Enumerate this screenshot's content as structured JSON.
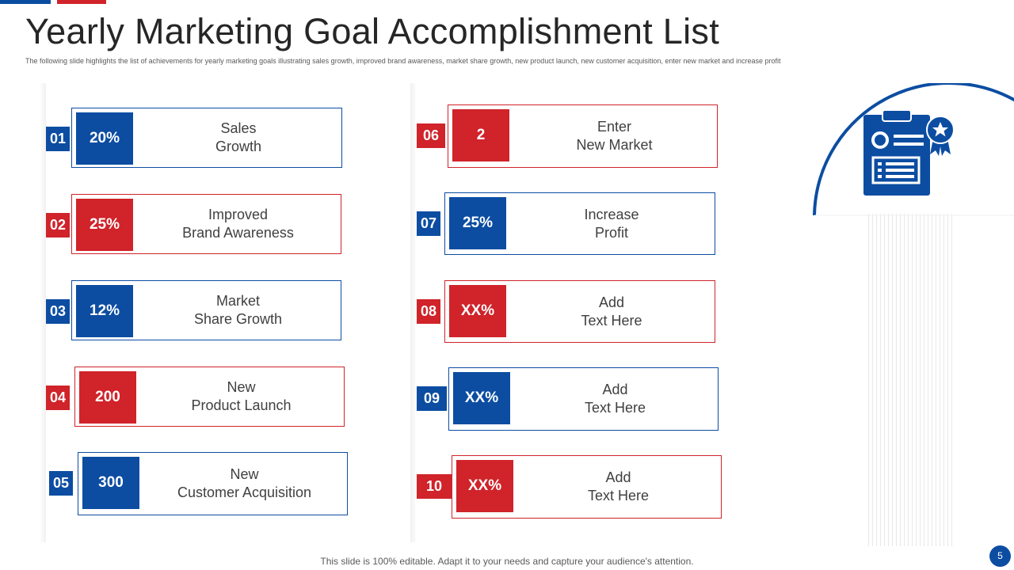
{
  "title": "Yearly Marketing Goal Accomplishment List",
  "subtitle": "The following slide highlights the list of achievements for yearly marketing goals illustrating sales growth, improved brand awareness, market share growth, new product launch, new customer acquisition, enter new market and increase profit",
  "colors": {
    "blue": "#0c4da2",
    "red": "#d0232a"
  },
  "items": [
    {
      "num": "01",
      "value": "20%",
      "text": "Sales\nGrowth",
      "color": "blue"
    },
    {
      "num": "02",
      "value": "25%",
      "text": "Improved\nBrand Awareness",
      "color": "red"
    },
    {
      "num": "03",
      "value": "12%",
      "text": "Market\nShare Growth",
      "color": "blue"
    },
    {
      "num": "04",
      "value": "200",
      "text": "New\nProduct Launch",
      "color": "red"
    },
    {
      "num": "05",
      "value": "300",
      "text": "New\nCustomer Acquisition",
      "color": "blue"
    },
    {
      "num": "06",
      "value": "2",
      "text": "Enter\nNew Market",
      "color": "red"
    },
    {
      "num": "07",
      "value": "25%",
      "text": "Increase\nProfit",
      "color": "blue"
    },
    {
      "num": "08",
      "value": "XX%",
      "text": "Add\nText Here",
      "color": "red"
    },
    {
      "num": "09",
      "value": "XX%",
      "text": "Add\nText Here",
      "color": "blue"
    },
    {
      "num": "10",
      "value": "XX%",
      "text": "Add\nText Here",
      "color": "red"
    }
  ],
  "icon": "clipboard-award-icon",
  "footer": "This slide is 100% editable. Adapt it to your needs and capture your audience's attention.",
  "page_number": "5"
}
